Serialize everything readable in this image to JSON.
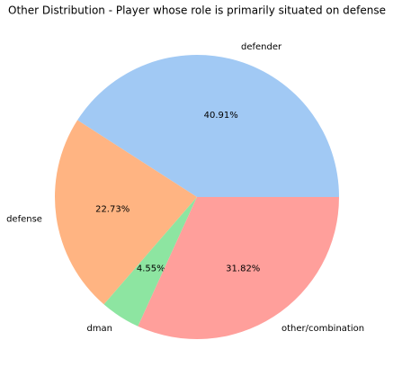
{
  "chart_data": {
    "type": "pie",
    "title": "Other Distribution - Player whose role is primarily situated on defense",
    "categories": [
      "defender",
      "defense",
      "dman",
      "other/combination"
    ],
    "values": [
      40.91,
      22.73,
      4.55,
      31.82
    ],
    "value_labels": [
      "40.91%",
      "22.73%",
      "4.55%",
      "31.82%"
    ],
    "colors": [
      "#a1c9f4",
      "#ffb482",
      "#8de5a1",
      "#ff9f9b"
    ]
  }
}
